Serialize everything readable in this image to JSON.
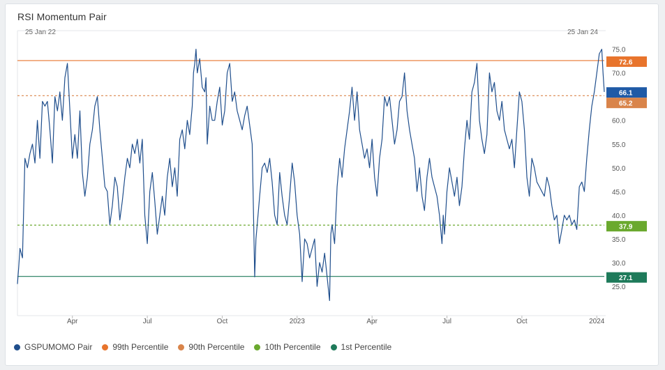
{
  "header": {
    "title": "RSI Momentum Pair"
  },
  "range": {
    "start_label": "25 Jan 22",
    "end_label": "25 Jan 24"
  },
  "colors": {
    "series": "#1f4e8c",
    "p99": "#e8742c",
    "p90": "#d9844a",
    "p10": "#6aa92e",
    "p1": "#1e7a5a",
    "current": "#1f5aa6"
  },
  "chart_data": {
    "type": "line",
    "title": "RSI Momentum Pair",
    "xlabel": "",
    "ylabel": "",
    "ylim": [
      20,
      77
    ],
    "xlim": [
      "2022-01-25",
      "2024-01-25"
    ],
    "y_ticks": [
      "25.0",
      "30.0",
      "35.0",
      "40.0",
      "45.0",
      "50.0",
      "55.0",
      "60.0",
      "65.0",
      "70.0",
      "75.0"
    ],
    "x_ticks": [
      {
        "label": "Apr",
        "t": 2.2
      },
      {
        "label": "Jul",
        "t": 5.2
      },
      {
        "label": "Oct",
        "t": 8.2
      },
      {
        "label": "2023",
        "t": 11.2
      },
      {
        "label": "Apr",
        "t": 14.2
      },
      {
        "label": "Jul",
        "t": 17.2
      },
      {
        "label": "Oct",
        "t": 20.2
      },
      {
        "label": "2024",
        "t": 23.2
      }
    ],
    "series": [
      {
        "name": "GSPUMOMO Pair",
        "x_unit": "months since 25 Jan 22",
        "points": [
          [
            0.0,
            25.5
          ],
          [
            0.05,
            29.0
          ],
          [
            0.1,
            33.0
          ],
          [
            0.2,
            31.0
          ],
          [
            0.3,
            52.0
          ],
          [
            0.4,
            50.0
          ],
          [
            0.5,
            53.0
          ],
          [
            0.6,
            55.0
          ],
          [
            0.7,
            51.0
          ],
          [
            0.8,
            60.0
          ],
          [
            0.9,
            52.0
          ],
          [
            1.0,
            64.0
          ],
          [
            1.1,
            63.0
          ],
          [
            1.2,
            64.0
          ],
          [
            1.3,
            58.0
          ],
          [
            1.4,
            51.0
          ],
          [
            1.5,
            65.0
          ],
          [
            1.6,
            62.0
          ],
          [
            1.7,
            66.0
          ],
          [
            1.8,
            60.0
          ],
          [
            1.9,
            69.0
          ],
          [
            2.0,
            72.0
          ],
          [
            2.1,
            62.0
          ],
          [
            2.2,
            52.0
          ],
          [
            2.3,
            57.0
          ],
          [
            2.4,
            52.0
          ],
          [
            2.5,
            62.0
          ],
          [
            2.6,
            49.0
          ],
          [
            2.7,
            44.0
          ],
          [
            2.8,
            48.0
          ],
          [
            2.9,
            55.0
          ],
          [
            3.0,
            58.0
          ],
          [
            3.1,
            63.0
          ],
          [
            3.2,
            65.0
          ],
          [
            3.3,
            58.0
          ],
          [
            3.4,
            52.0
          ],
          [
            3.5,
            46.0
          ],
          [
            3.6,
            45.0
          ],
          [
            3.7,
            38.0
          ],
          [
            3.8,
            42.0
          ],
          [
            3.9,
            48.0
          ],
          [
            4.0,
            46.0
          ],
          [
            4.1,
            39.0
          ],
          [
            4.2,
            43.0
          ],
          [
            4.3,
            48.0
          ],
          [
            4.4,
            52.0
          ],
          [
            4.5,
            50.0
          ],
          [
            4.6,
            55.0
          ],
          [
            4.7,
            53.0
          ],
          [
            4.8,
            56.0
          ],
          [
            4.9,
            51.0
          ],
          [
            5.0,
            56.0
          ],
          [
            5.05,
            48.0
          ],
          [
            5.1,
            40.0
          ],
          [
            5.2,
            34.0
          ],
          [
            5.3,
            45.0
          ],
          [
            5.4,
            49.0
          ],
          [
            5.5,
            43.0
          ],
          [
            5.6,
            36.0
          ],
          [
            5.7,
            40.0
          ],
          [
            5.8,
            44.0
          ],
          [
            5.9,
            40.0
          ],
          [
            6.0,
            48.0
          ],
          [
            6.1,
            52.0
          ],
          [
            6.2,
            46.0
          ],
          [
            6.3,
            50.0
          ],
          [
            6.4,
            44.0
          ],
          [
            6.5,
            56.0
          ],
          [
            6.6,
            58.0
          ],
          [
            6.7,
            54.0
          ],
          [
            6.8,
            60.0
          ],
          [
            6.9,
            57.0
          ],
          [
            7.0,
            63.0
          ],
          [
            7.05,
            70.0
          ],
          [
            7.1,
            72.0
          ],
          [
            7.15,
            75.0
          ],
          [
            7.2,
            70.0
          ],
          [
            7.3,
            73.0
          ],
          [
            7.4,
            67.0
          ],
          [
            7.5,
            66.0
          ],
          [
            7.55,
            69.0
          ],
          [
            7.6,
            55.0
          ],
          [
            7.7,
            63.0
          ],
          [
            7.8,
            60.0
          ],
          [
            7.9,
            60.0
          ],
          [
            8.0,
            64.0
          ],
          [
            8.1,
            67.0
          ],
          [
            8.2,
            59.0
          ],
          [
            8.3,
            62.0
          ],
          [
            8.4,
            70.0
          ],
          [
            8.5,
            72.0
          ],
          [
            8.6,
            64.0
          ],
          [
            8.7,
            66.0
          ],
          [
            8.8,
            62.0
          ],
          [
            8.9,
            60.0
          ],
          [
            9.0,
            58.0
          ],
          [
            9.1,
            61.0
          ],
          [
            9.2,
            63.0
          ],
          [
            9.3,
            59.0
          ],
          [
            9.4,
            55.0
          ],
          [
            9.5,
            27.0
          ],
          [
            9.55,
            35.0
          ],
          [
            9.6,
            38.0
          ],
          [
            9.7,
            44.0
          ],
          [
            9.8,
            50.0
          ],
          [
            9.9,
            51.0
          ],
          [
            10.0,
            49.0
          ],
          [
            10.1,
            52.0
          ],
          [
            10.2,
            47.0
          ],
          [
            10.3,
            40.0
          ],
          [
            10.4,
            38.0
          ],
          [
            10.5,
            49.0
          ],
          [
            10.6,
            44.0
          ],
          [
            10.7,
            40.0
          ],
          [
            10.8,
            38.0
          ],
          [
            10.9,
            44.0
          ],
          [
            11.0,
            51.0
          ],
          [
            11.1,
            47.0
          ],
          [
            11.2,
            40.0
          ],
          [
            11.3,
            36.0
          ],
          [
            11.4,
            26.0
          ],
          [
            11.5,
            35.0
          ],
          [
            11.6,
            34.0
          ],
          [
            11.7,
            31.0
          ],
          [
            11.8,
            33.0
          ],
          [
            11.9,
            35.0
          ],
          [
            12.0,
            25.0
          ],
          [
            12.1,
            30.0
          ],
          [
            12.2,
            28.0
          ],
          [
            12.3,
            32.0
          ],
          [
            12.4,
            27.0
          ],
          [
            12.5,
            22.0
          ],
          [
            12.55,
            36.0
          ],
          [
            12.6,
            38.0
          ],
          [
            12.7,
            34.0
          ],
          [
            12.8,
            46.0
          ],
          [
            12.9,
            52.0
          ],
          [
            13.0,
            48.0
          ],
          [
            13.1,
            54.0
          ],
          [
            13.2,
            58.0
          ],
          [
            13.3,
            62.0
          ],
          [
            13.4,
            67.0
          ],
          [
            13.5,
            60.0
          ],
          [
            13.6,
            66.0
          ],
          [
            13.7,
            58.0
          ],
          [
            13.8,
            55.0
          ],
          [
            13.9,
            52.0
          ],
          [
            14.0,
            54.0
          ],
          [
            14.1,
            50.0
          ],
          [
            14.2,
            56.0
          ],
          [
            14.3,
            48.0
          ],
          [
            14.4,
            44.0
          ],
          [
            14.5,
            52.0
          ],
          [
            14.6,
            56.0
          ],
          [
            14.7,
            65.0
          ],
          [
            14.8,
            63.0
          ],
          [
            14.9,
            65.0
          ],
          [
            15.0,
            60.0
          ],
          [
            15.1,
            55.0
          ],
          [
            15.2,
            58.0
          ],
          [
            15.3,
            64.0
          ],
          [
            15.4,
            65.0
          ],
          [
            15.5,
            70.0
          ],
          [
            15.6,
            62.0
          ],
          [
            15.7,
            58.0
          ],
          [
            15.8,
            55.0
          ],
          [
            15.9,
            52.0
          ],
          [
            16.0,
            45.0
          ],
          [
            16.1,
            50.0
          ],
          [
            16.2,
            44.0
          ],
          [
            16.3,
            41.0
          ],
          [
            16.4,
            48.0
          ],
          [
            16.5,
            52.0
          ],
          [
            16.6,
            48.0
          ],
          [
            16.7,
            46.0
          ],
          [
            16.8,
            44.0
          ],
          [
            16.9,
            40.0
          ],
          [
            17.0,
            34.0
          ],
          [
            17.05,
            40.0
          ],
          [
            17.1,
            36.0
          ],
          [
            17.2,
            45.0
          ],
          [
            17.3,
            50.0
          ],
          [
            17.4,
            47.0
          ],
          [
            17.5,
            44.0
          ],
          [
            17.6,
            48.0
          ],
          [
            17.7,
            42.0
          ],
          [
            17.8,
            46.0
          ],
          [
            17.9,
            54.0
          ],
          [
            18.0,
            60.0
          ],
          [
            18.1,
            56.0
          ],
          [
            18.2,
            66.0
          ],
          [
            18.3,
            68.0
          ],
          [
            18.4,
            72.0
          ],
          [
            18.5,
            60.0
          ],
          [
            18.6,
            56.0
          ],
          [
            18.7,
            53.0
          ],
          [
            18.8,
            57.0
          ],
          [
            18.9,
            70.0
          ],
          [
            19.0,
            66.0
          ],
          [
            19.1,
            68.0
          ],
          [
            19.2,
            62.0
          ],
          [
            19.3,
            60.0
          ],
          [
            19.4,
            64.0
          ],
          [
            19.5,
            58.0
          ],
          [
            19.6,
            56.0
          ],
          [
            19.7,
            54.0
          ],
          [
            19.8,
            56.0
          ],
          [
            19.9,
            50.0
          ],
          [
            20.0,
            58.0
          ],
          [
            20.1,
            66.0
          ],
          [
            20.2,
            64.0
          ],
          [
            20.3,
            58.0
          ],
          [
            20.4,
            48.0
          ],
          [
            20.5,
            44.0
          ],
          [
            20.6,
            52.0
          ],
          [
            20.7,
            50.0
          ],
          [
            20.8,
            47.0
          ],
          [
            20.9,
            46.0
          ],
          [
            21.0,
            45.0
          ],
          [
            21.1,
            44.0
          ],
          [
            21.2,
            48.0
          ],
          [
            21.3,
            46.0
          ],
          [
            21.4,
            42.0
          ],
          [
            21.5,
            39.0
          ],
          [
            21.6,
            40.0
          ],
          [
            21.7,
            34.0
          ],
          [
            21.8,
            37.0
          ],
          [
            21.9,
            40.0
          ],
          [
            22.0,
            39.0
          ],
          [
            22.1,
            40.0
          ],
          [
            22.2,
            38.0
          ],
          [
            22.3,
            39.0
          ],
          [
            22.4,
            37.0
          ],
          [
            22.5,
            46.0
          ],
          [
            22.6,
            47.0
          ],
          [
            22.7,
            45.0
          ],
          [
            22.8,
            52.0
          ],
          [
            22.9,
            58.0
          ],
          [
            23.0,
            63.0
          ],
          [
            23.1,
            66.0
          ],
          [
            23.2,
            70.0
          ],
          [
            23.3,
            74.0
          ],
          [
            23.4,
            75.0
          ],
          [
            23.45,
            70.0
          ],
          [
            23.5,
            66.0
          ]
        ]
      },
      {
        "name": "99th Percentile",
        "value": 72.6
      },
      {
        "name": "90th Percentile",
        "value": 65.2
      },
      {
        "name": "10th Percentile",
        "value": 37.9
      },
      {
        "name": "1st Percentile",
        "value": 27.1
      }
    ],
    "current_value": 66.1,
    "labels": {
      "current": "66.1",
      "p99": "72.6",
      "p90": "65.2",
      "p10": "37.9",
      "p1": "27.1"
    }
  },
  "legend": [
    {
      "label": "GSPUMOMO Pair",
      "color": "#1f4e8c"
    },
    {
      "label": "99th Percentile",
      "color": "#e8742c"
    },
    {
      "label": "90th Percentile",
      "color": "#d9844a"
    },
    {
      "label": "10th Percentile",
      "color": "#6aa92e"
    },
    {
      "label": "1st Percentile",
      "color": "#1e7a5a"
    }
  ]
}
